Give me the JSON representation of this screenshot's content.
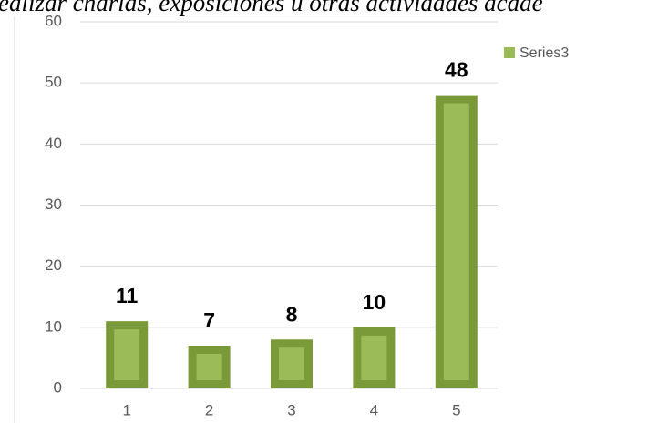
{
  "chart_data": {
    "type": "bar",
    "title": "ealizar charlas, exposiciones u otras actividades acade",
    "categories": [
      "1",
      "2",
      "3",
      "4",
      "5"
    ],
    "series": [
      {
        "name": "Series3",
        "color": "#9bbb59",
        "values": [
          11,
          7,
          8,
          10,
          48
        ],
        "value_labels": [
          "11",
          "7",
          "8",
          "10",
          "48"
        ]
      }
    ],
    "ylim": [
      0,
      60
    ],
    "yticks": [
      0,
      10,
      20,
      30,
      40,
      50,
      60
    ],
    "grid": true,
    "legend": "top-right"
  }
}
